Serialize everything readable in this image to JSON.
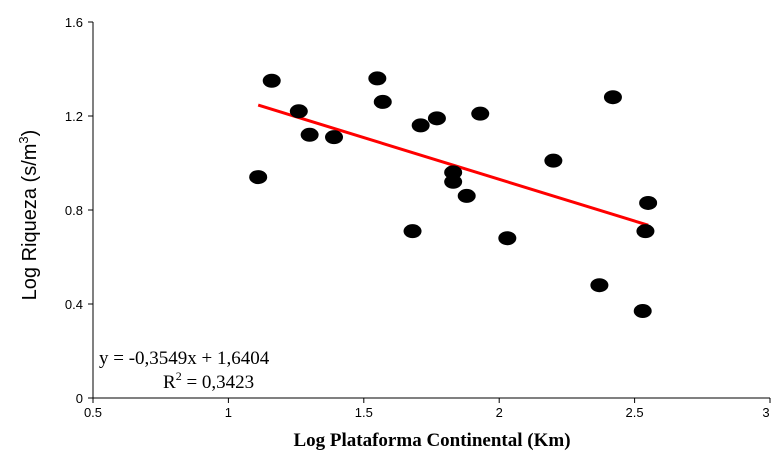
{
  "chart_data": {
    "type": "scatter",
    "xlabel": "Log Plataforma Continental (Km)",
    "ylabel_main": "Log Riqueza (s/m",
    "ylabel_sup": "3",
    "ylabel_close": ")",
    "xlim": [
      0.5,
      3
    ],
    "ylim": [
      0,
      1.6
    ],
    "xticks": [
      "0.5",
      "1",
      "1.5",
      "2",
      "2.5",
      "3"
    ],
    "yticks": [
      "0",
      "0.4",
      "0.8",
      "1.2",
      "1.6"
    ],
    "points": [
      {
        "x": 1.11,
        "y": 0.94
      },
      {
        "x": 1.16,
        "y": 1.35
      },
      {
        "x": 1.26,
        "y": 1.22
      },
      {
        "x": 1.3,
        "y": 1.12
      },
      {
        "x": 1.39,
        "y": 1.11
      },
      {
        "x": 1.55,
        "y": 1.36
      },
      {
        "x": 1.57,
        "y": 1.26
      },
      {
        "x": 1.68,
        "y": 0.71
      },
      {
        "x": 1.71,
        "y": 1.16
      },
      {
        "x": 1.77,
        "y": 1.19
      },
      {
        "x": 1.83,
        "y": 0.96
      },
      {
        "x": 1.83,
        "y": 0.92
      },
      {
        "x": 1.88,
        "y": 0.86
      },
      {
        "x": 1.93,
        "y": 1.21
      },
      {
        "x": 2.03,
        "y": 0.68
      },
      {
        "x": 2.2,
        "y": 1.01
      },
      {
        "x": 2.37,
        "y": 0.48
      },
      {
        "x": 2.42,
        "y": 1.28
      },
      {
        "x": 2.53,
        "y": 0.37
      },
      {
        "x": 2.54,
        "y": 0.71
      },
      {
        "x": 2.55,
        "y": 0.83
      }
    ],
    "trendline": {
      "slope": -0.3549,
      "intercept": 1.6404,
      "x_range": [
        1.11,
        2.55
      ],
      "color": "#ff0000",
      "equation_text": "y = -0,3549x + 1,6404",
      "r2_prefix": "R",
      "r2_sup": "2",
      "r2_suffix": " = 0,3423"
    },
    "point_color": "#000000",
    "grid": false
  }
}
